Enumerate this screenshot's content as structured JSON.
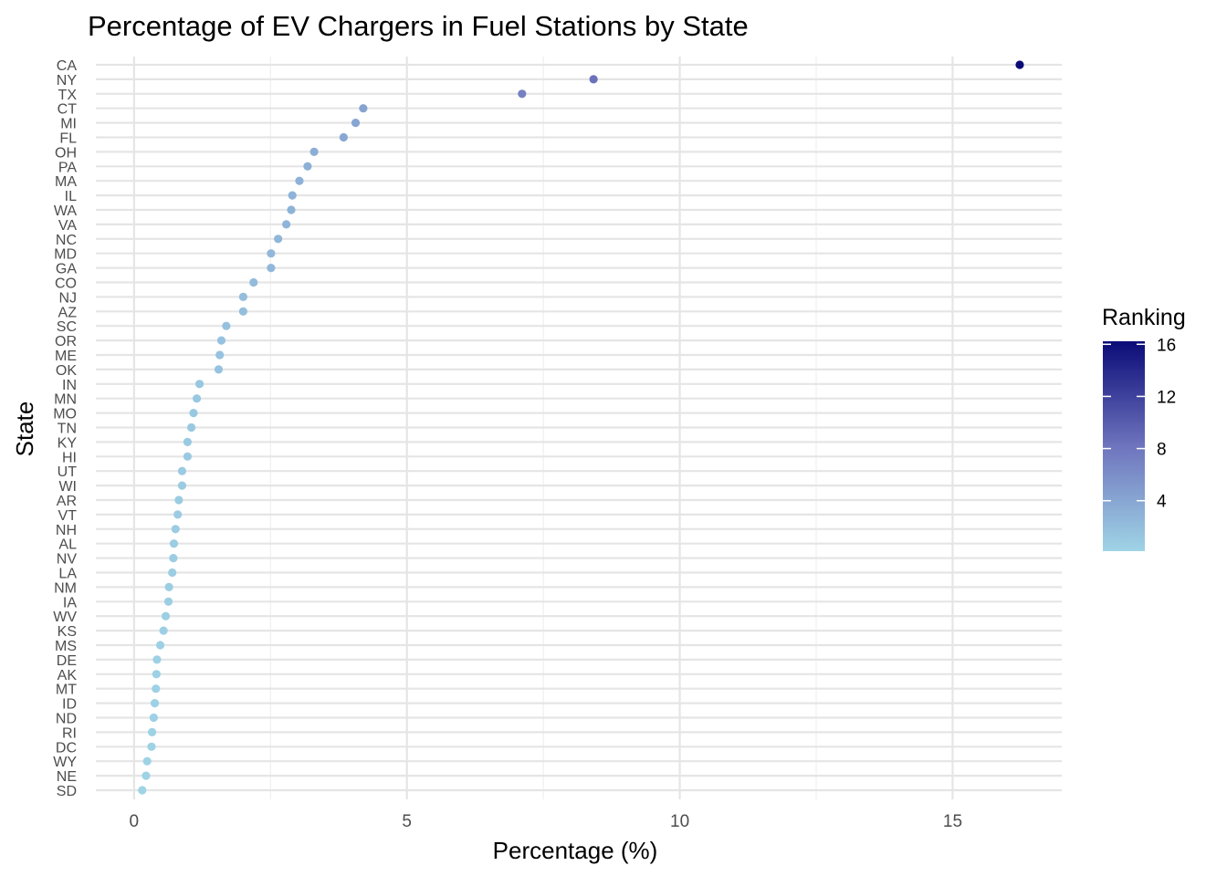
{
  "chart_data": {
    "type": "scatter",
    "title": "Percentage of EV Chargers in Fuel Stations by State",
    "xlabel": "Percentage (%)",
    "ylabel": "State",
    "xlim": [
      -0.7,
      17
    ],
    "x_ticks": [
      0,
      5,
      10,
      15
    ],
    "x_tick_labels": [
      "0",
      "5",
      "10",
      "15"
    ],
    "grid": true,
    "legend": {
      "title": "Ranking",
      "placement": "right",
      "type": "color-gradient",
      "range": [
        0.13,
        16.23
      ],
      "ticks": [
        4,
        8,
        12,
        16
      ],
      "tick_labels": [
        "4",
        "8",
        "12",
        "16"
      ],
      "low_color": "#9fd4e6",
      "mid_color": "#6e74bd",
      "high_color": "#0b0b78"
    },
    "states": [
      "CA",
      "NY",
      "TX",
      "CT",
      "MI",
      "FL",
      "OH",
      "PA",
      "MA",
      "IL",
      "WA",
      "VA",
      "NC",
      "MD",
      "GA",
      "CO",
      "NJ",
      "AZ",
      "SC",
      "OR",
      "ME",
      "OK",
      "IN",
      "MN",
      "MO",
      "TN",
      "KY",
      "HI",
      "UT",
      "WI",
      "AR",
      "VT",
      "NH",
      "AL",
      "NV",
      "LA",
      "NM",
      "IA",
      "WV",
      "KS",
      "MS",
      "DE",
      "AK",
      "MT",
      "ID",
      "ND",
      "RI",
      "DC",
      "WY",
      "NE",
      "SD"
    ],
    "values": [
      16.23,
      8.42,
      7.11,
      4.2,
      4.06,
      3.84,
      3.3,
      3.18,
      3.03,
      2.9,
      2.88,
      2.79,
      2.64,
      2.51,
      2.51,
      2.19,
      2.0,
      2.0,
      1.69,
      1.6,
      1.57,
      1.55,
      1.2,
      1.15,
      1.09,
      1.05,
      0.98,
      0.98,
      0.88,
      0.88,
      0.82,
      0.8,
      0.76,
      0.73,
      0.72,
      0.7,
      0.64,
      0.63,
      0.58,
      0.54,
      0.48,
      0.42,
      0.41,
      0.4,
      0.38,
      0.36,
      0.33,
      0.32,
      0.24,
      0.22,
      0.15
    ]
  }
}
